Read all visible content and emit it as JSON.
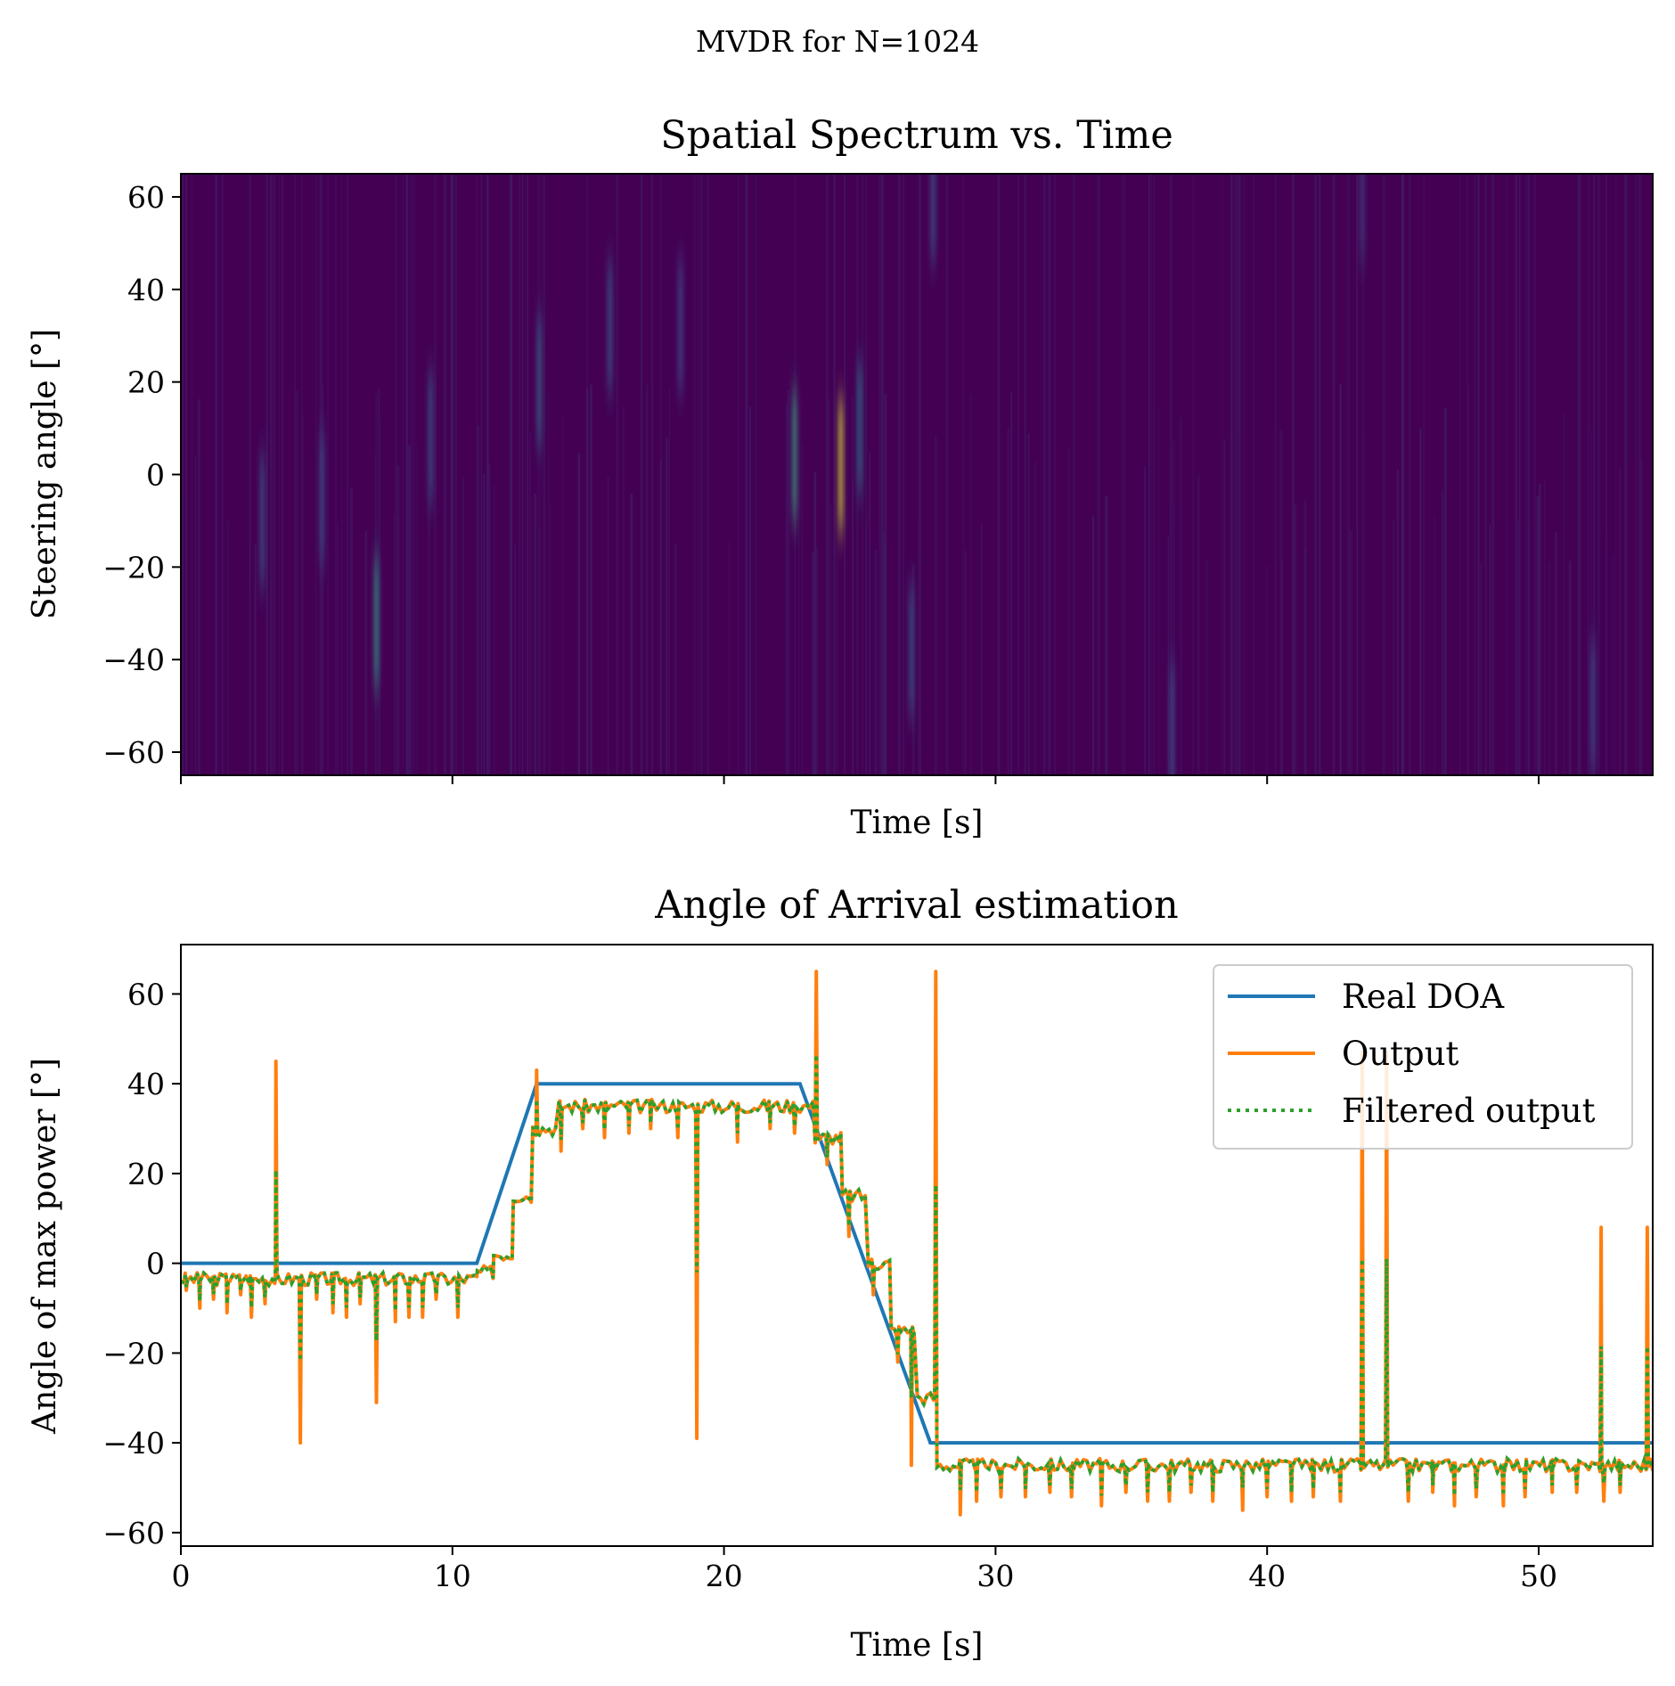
{
  "figure": {
    "suptitle": "MVDR for N=1024"
  },
  "chart_data": [
    {
      "type": "heatmap",
      "title": "Spatial Spectrum vs. Time",
      "xlabel": "Time [s]",
      "ylabel": "Steering angle [°]",
      "xlim": [
        0,
        54.2
      ],
      "ylim": [
        -65,
        65
      ],
      "yticks": [
        "60",
        "40",
        "20",
        "0",
        "−20",
        "−40",
        "−60"
      ],
      "ytick_values": [
        60,
        40,
        20,
        0,
        -20,
        -40,
        -60
      ],
      "xtick_values": [
        0,
        10,
        20,
        30,
        40,
        50
      ],
      "xtick_labels_shown": false,
      "colormap": "viridis",
      "background_color": "#440154",
      "highlights": [
        {
          "t": 3.0,
          "angle": -10,
          "level": 0.3
        },
        {
          "t": 5.2,
          "angle": -5,
          "level": 0.25
        },
        {
          "t": 7.2,
          "angle": -32,
          "level": 0.55
        },
        {
          "t": 9.2,
          "angle": 8,
          "level": 0.3
        },
        {
          "t": 13.2,
          "angle": 20,
          "level": 0.35
        },
        {
          "t": 15.8,
          "angle": 32,
          "level": 0.3
        },
        {
          "t": 18.4,
          "angle": 32,
          "level": 0.25
        },
        {
          "t": 22.6,
          "angle": 4,
          "level": 0.6
        },
        {
          "t": 24.3,
          "angle": 2,
          "level": 0.95
        },
        {
          "t": 25.0,
          "angle": 10,
          "level": 0.4
        },
        {
          "t": 26.9,
          "angle": -38,
          "level": 0.3
        },
        {
          "t": 27.7,
          "angle": 60,
          "level": 0.3
        },
        {
          "t": 36.5,
          "angle": -55,
          "level": 0.25
        },
        {
          "t": 43.5,
          "angle": 60,
          "level": 0.2
        },
        {
          "t": 52.0,
          "angle": -50,
          "level": 0.25
        }
      ]
    },
    {
      "type": "line",
      "title": "Angle of Arrival estimation",
      "xlabel": "Time [s]",
      "ylabel": "Angle of max power [°]",
      "xlim": [
        0,
        54.2
      ],
      "ylim": [
        -63,
        71
      ],
      "xticks": [
        "0",
        "10",
        "20",
        "30",
        "40",
        "50"
      ],
      "xtick_values": [
        0,
        10,
        20,
        30,
        40,
        50
      ],
      "yticks": [
        "60",
        "40",
        "20",
        "0",
        "−20",
        "−40",
        "−60"
      ],
      "ytick_values": [
        60,
        40,
        20,
        0,
        -20,
        -40,
        -60
      ],
      "legend_position": "top-right",
      "series": [
        {
          "name": "Real DOA",
          "color": "#1f77b4",
          "style": "solid",
          "x": [
            0,
            10.9,
            13.1,
            22.8,
            27.6,
            54.2
          ],
          "y": [
            0,
            0,
            40,
            40,
            -40,
            -40
          ]
        },
        {
          "name": "Output",
          "color": "#ff7f0e",
          "style": "solid",
          "segments": [
            {
              "x0": 0,
              "x1": 10.9,
              "y": -3.5
            },
            {
              "x0": 10.9,
              "x1": 11.5,
              "y": -2
            },
            {
              "x0": 11.5,
              "x1": 12.2,
              "y": 2
            },
            {
              "x0": 12.2,
              "x1": 12.9,
              "y": 15
            },
            {
              "x0": 12.9,
              "x1": 13.8,
              "y": 30
            },
            {
              "x0": 13.8,
              "x1": 23.3,
              "y": 35
            },
            {
              "x0": 23.3,
              "x1": 24.3,
              "y": 28
            },
            {
              "x0": 24.3,
              "x1": 25.2,
              "y": 15
            },
            {
              "x0": 25.2,
              "x1": 26.1,
              "y": 0
            },
            {
              "x0": 26.1,
              "x1": 27.0,
              "y": -15
            },
            {
              "x0": 27.0,
              "x1": 27.8,
              "y": -30
            },
            {
              "x0": 27.8,
              "x1": 54.2,
              "y": -45
            }
          ],
          "spikes": [
            {
              "x": 3.5,
              "y": 45
            },
            {
              "x": 4.4,
              "y": -40
            },
            {
              "x": 7.2,
              "y": -31
            },
            {
              "x": 13.1,
              "y": 43
            },
            {
              "x": 19.0,
              "y": -39
            },
            {
              "x": 23.4,
              "y": 65
            },
            {
              "x": 27.8,
              "y": 65
            },
            {
              "x": 26.9,
              "y": -45
            },
            {
              "x": 28.7,
              "y": -56
            },
            {
              "x": 39.1,
              "y": -55
            },
            {
              "x": 43.5,
              "y": 47
            },
            {
              "x": 44.4,
              "y": 47
            },
            {
              "x": 52.3,
              "y": 8
            },
            {
              "x": 52.4,
              "y": -53
            },
            {
              "x": 54.0,
              "y": 8
            }
          ],
          "dips": [
            {
              "x": 0.2,
              "y": -6
            },
            {
              "x": 0.7,
              "y": -10
            },
            {
              "x": 1.2,
              "y": -8
            },
            {
              "x": 1.7,
              "y": -11
            },
            {
              "x": 2.2,
              "y": -7
            },
            {
              "x": 2.6,
              "y": -12
            },
            {
              "x": 3.1,
              "y": -9
            },
            {
              "x": 5.0,
              "y": -8
            },
            {
              "x": 5.6,
              "y": -11
            },
            {
              "x": 6.1,
              "y": -12
            },
            {
              "x": 6.6,
              "y": -9
            },
            {
              "x": 7.9,
              "y": -13
            },
            {
              "x": 8.4,
              "y": -12
            },
            {
              "x": 8.9,
              "y": -12
            },
            {
              "x": 9.4,
              "y": -8
            },
            {
              "x": 10.2,
              "y": -12
            },
            {
              "x": 14.0,
              "y": 25
            },
            {
              "x": 14.8,
              "y": 30
            },
            {
              "x": 15.6,
              "y": 28
            },
            {
              "x": 16.5,
              "y": 29
            },
            {
              "x": 17.3,
              "y": 30
            },
            {
              "x": 18.3,
              "y": 28
            },
            {
              "x": 20.5,
              "y": 27
            },
            {
              "x": 21.7,
              "y": 30
            },
            {
              "x": 22.6,
              "y": 29
            },
            {
              "x": 23.8,
              "y": 22
            },
            {
              "x": 24.6,
              "y": 6
            },
            {
              "x": 25.5,
              "y": -7
            },
            {
              "x": 26.4,
              "y": -22
            },
            {
              "x": 29.3,
              "y": -53
            },
            {
              "x": 30.2,
              "y": -52
            },
            {
              "x": 31.1,
              "y": -52
            },
            {
              "x": 32.0,
              "y": -51
            },
            {
              "x": 32.8,
              "y": -52
            },
            {
              "x": 33.9,
              "y": -54
            },
            {
              "x": 34.8,
              "y": -51
            },
            {
              "x": 35.6,
              "y": -53
            },
            {
              "x": 36.4,
              "y": -53
            },
            {
              "x": 37.2,
              "y": -51
            },
            {
              "x": 38.0,
              "y": -53
            },
            {
              "x": 40.0,
              "y": -52
            },
            {
              "x": 40.9,
              "y": -53
            },
            {
              "x": 41.7,
              "y": -52
            },
            {
              "x": 42.7,
              "y": -53
            },
            {
              "x": 45.2,
              "y": -53
            },
            {
              "x": 46.1,
              "y": -51
            },
            {
              "x": 46.9,
              "y": -54
            },
            {
              "x": 47.7,
              "y": -52
            },
            {
              "x": 48.7,
              "y": -54
            },
            {
              "x": 49.5,
              "y": -52
            },
            {
              "x": 50.5,
              "y": -51
            },
            {
              "x": 51.4,
              "y": -51
            },
            {
              "x": 53.0,
              "y": -51
            }
          ]
        },
        {
          "name": "Filtered output",
          "color": "#2ca02c",
          "style": "dotted",
          "follows": "Output",
          "spike_scale": 0.5
        }
      ]
    }
  ]
}
